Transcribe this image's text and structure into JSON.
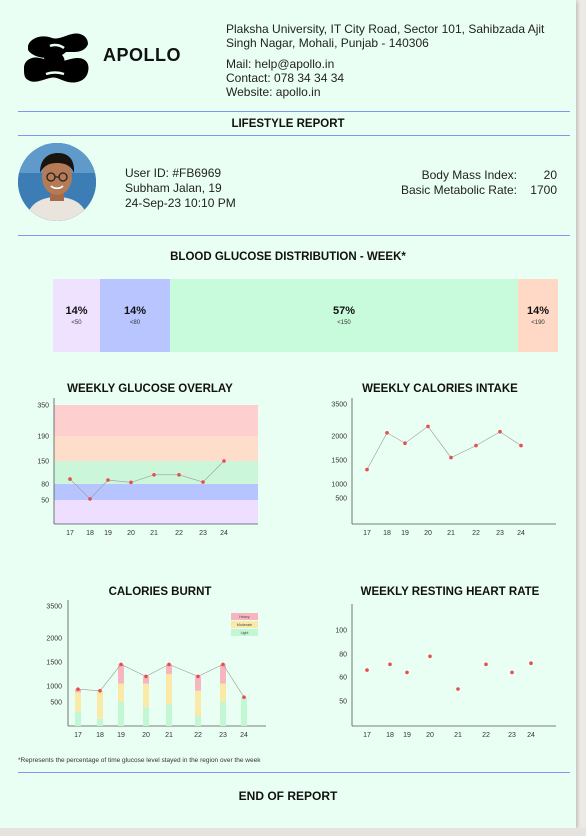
{
  "brand": {
    "name": "APOLLO"
  },
  "address": "Plaksha University, IT City Road, Sector 101, Sahibzada Ajit Singh Nagar, Mohali, Punjab - 140306",
  "contact": {
    "mail": "Mail: help@apollo.in",
    "phone": "Contact: 078 34 34 34",
    "website": "Website: apollo.in"
  },
  "report_title": "LIFESTYLE REPORT",
  "user": {
    "id": "User ID: #FB6969",
    "name_age": "Subham Jalan, 19",
    "datetime": "24-Sep-23 10:10 PM"
  },
  "metrics": {
    "bmi_label": "Body Mass Index:",
    "bmi_value": "20",
    "bmr_label": "Basic Metabolic Rate:",
    "bmr_value": "1700"
  },
  "distribution": {
    "title": "BLOOD GLUCOSE DISTRIBUTION - WEEK*",
    "segments": [
      {
        "pct": "14%",
        "range": "<50",
        "color": "#efe2ff"
      },
      {
        "pct": "14%",
        "range": "<80",
        "color": "#b8c5ff"
      },
      {
        "pct": "57%",
        "range": "<150",
        "color": "#c7fbdc"
      },
      {
        "pct": "14%",
        "range": "<190",
        "color": "#ffd9c5"
      }
    ]
  },
  "chart_data": [
    {
      "type": "line",
      "title": "WEEKLY GLUCOSE OVERLAY",
      "x": [
        "17",
        "18",
        "19",
        "20",
        "21",
        "22",
        "23",
        "24"
      ],
      "yticks": [
        "350",
        "190",
        "150",
        "80",
        "50"
      ],
      "values": [
        95,
        52,
        92,
        85,
        108,
        108,
        86,
        150
      ],
      "bands": [
        {
          "range": [
            190,
            350
          ],
          "color": "#ffcccc"
        },
        {
          "range": [
            150,
            190
          ],
          "color": "#ffdcc8"
        },
        {
          "range": [
            80,
            150
          ],
          "color": "#caf6d8"
        },
        {
          "range": [
            50,
            80
          ],
          "color": "#b3c2ff"
        },
        {
          "range": [
            0,
            50
          ],
          "color": "#eedcff"
        }
      ]
    },
    {
      "type": "line",
      "title": "WEEKLY CALORIES INTAKE",
      "x": [
        "17",
        "18",
        "19",
        "20",
        "21",
        "22",
        "23",
        "24"
      ],
      "yticks": [
        "3500",
        "2000",
        "1500",
        "1000",
        "500"
      ],
      "values": [
        1300,
        2150,
        1850,
        2450,
        1550,
        1800,
        2200,
        1800
      ]
    },
    {
      "type": "bar",
      "title": "CALORIES BURNT",
      "x": [
        "17",
        "18",
        "19",
        "20",
        "21",
        "22",
        "23",
        "24"
      ],
      "yticks": [
        "3500",
        "2000",
        "1500",
        "1000",
        "500"
      ],
      "series": [
        {
          "name": "Light",
          "color": "#c3f7d3",
          "values": [
            300,
            150,
            500,
            400,
            450,
            200,
            500,
            650
          ]
        },
        {
          "name": "Moderate",
          "color": "#fbe9a8",
          "values": [
            500,
            700,
            550,
            650,
            800,
            650,
            550,
            0
          ]
        },
        {
          "name": "Heavy",
          "color": "#f7b6bf",
          "values": [
            100,
            0,
            400,
            150,
            200,
            350,
            400,
            0
          ]
        }
      ],
      "totals": [
        900,
        850,
        1450,
        1200,
        1450,
        1200,
        1450,
        650
      ],
      "legend": [
        "Heavy",
        "Moderate",
        "Light"
      ]
    },
    {
      "type": "scatter",
      "title": "WEEKLY RESTING HEART RATE",
      "x": [
        "17",
        "18",
        "19",
        "20",
        "21",
        "22",
        "23",
        "24"
      ],
      "yticks": [
        "100",
        "80",
        "60",
        "50"
      ],
      "values": [
        66,
        71,
        64,
        78,
        55,
        71,
        64,
        72
      ]
    }
  ],
  "footnote": "*Represents the percentage of time glucose level stayed in the region over the week",
  "end_text": "END OF REPORT"
}
